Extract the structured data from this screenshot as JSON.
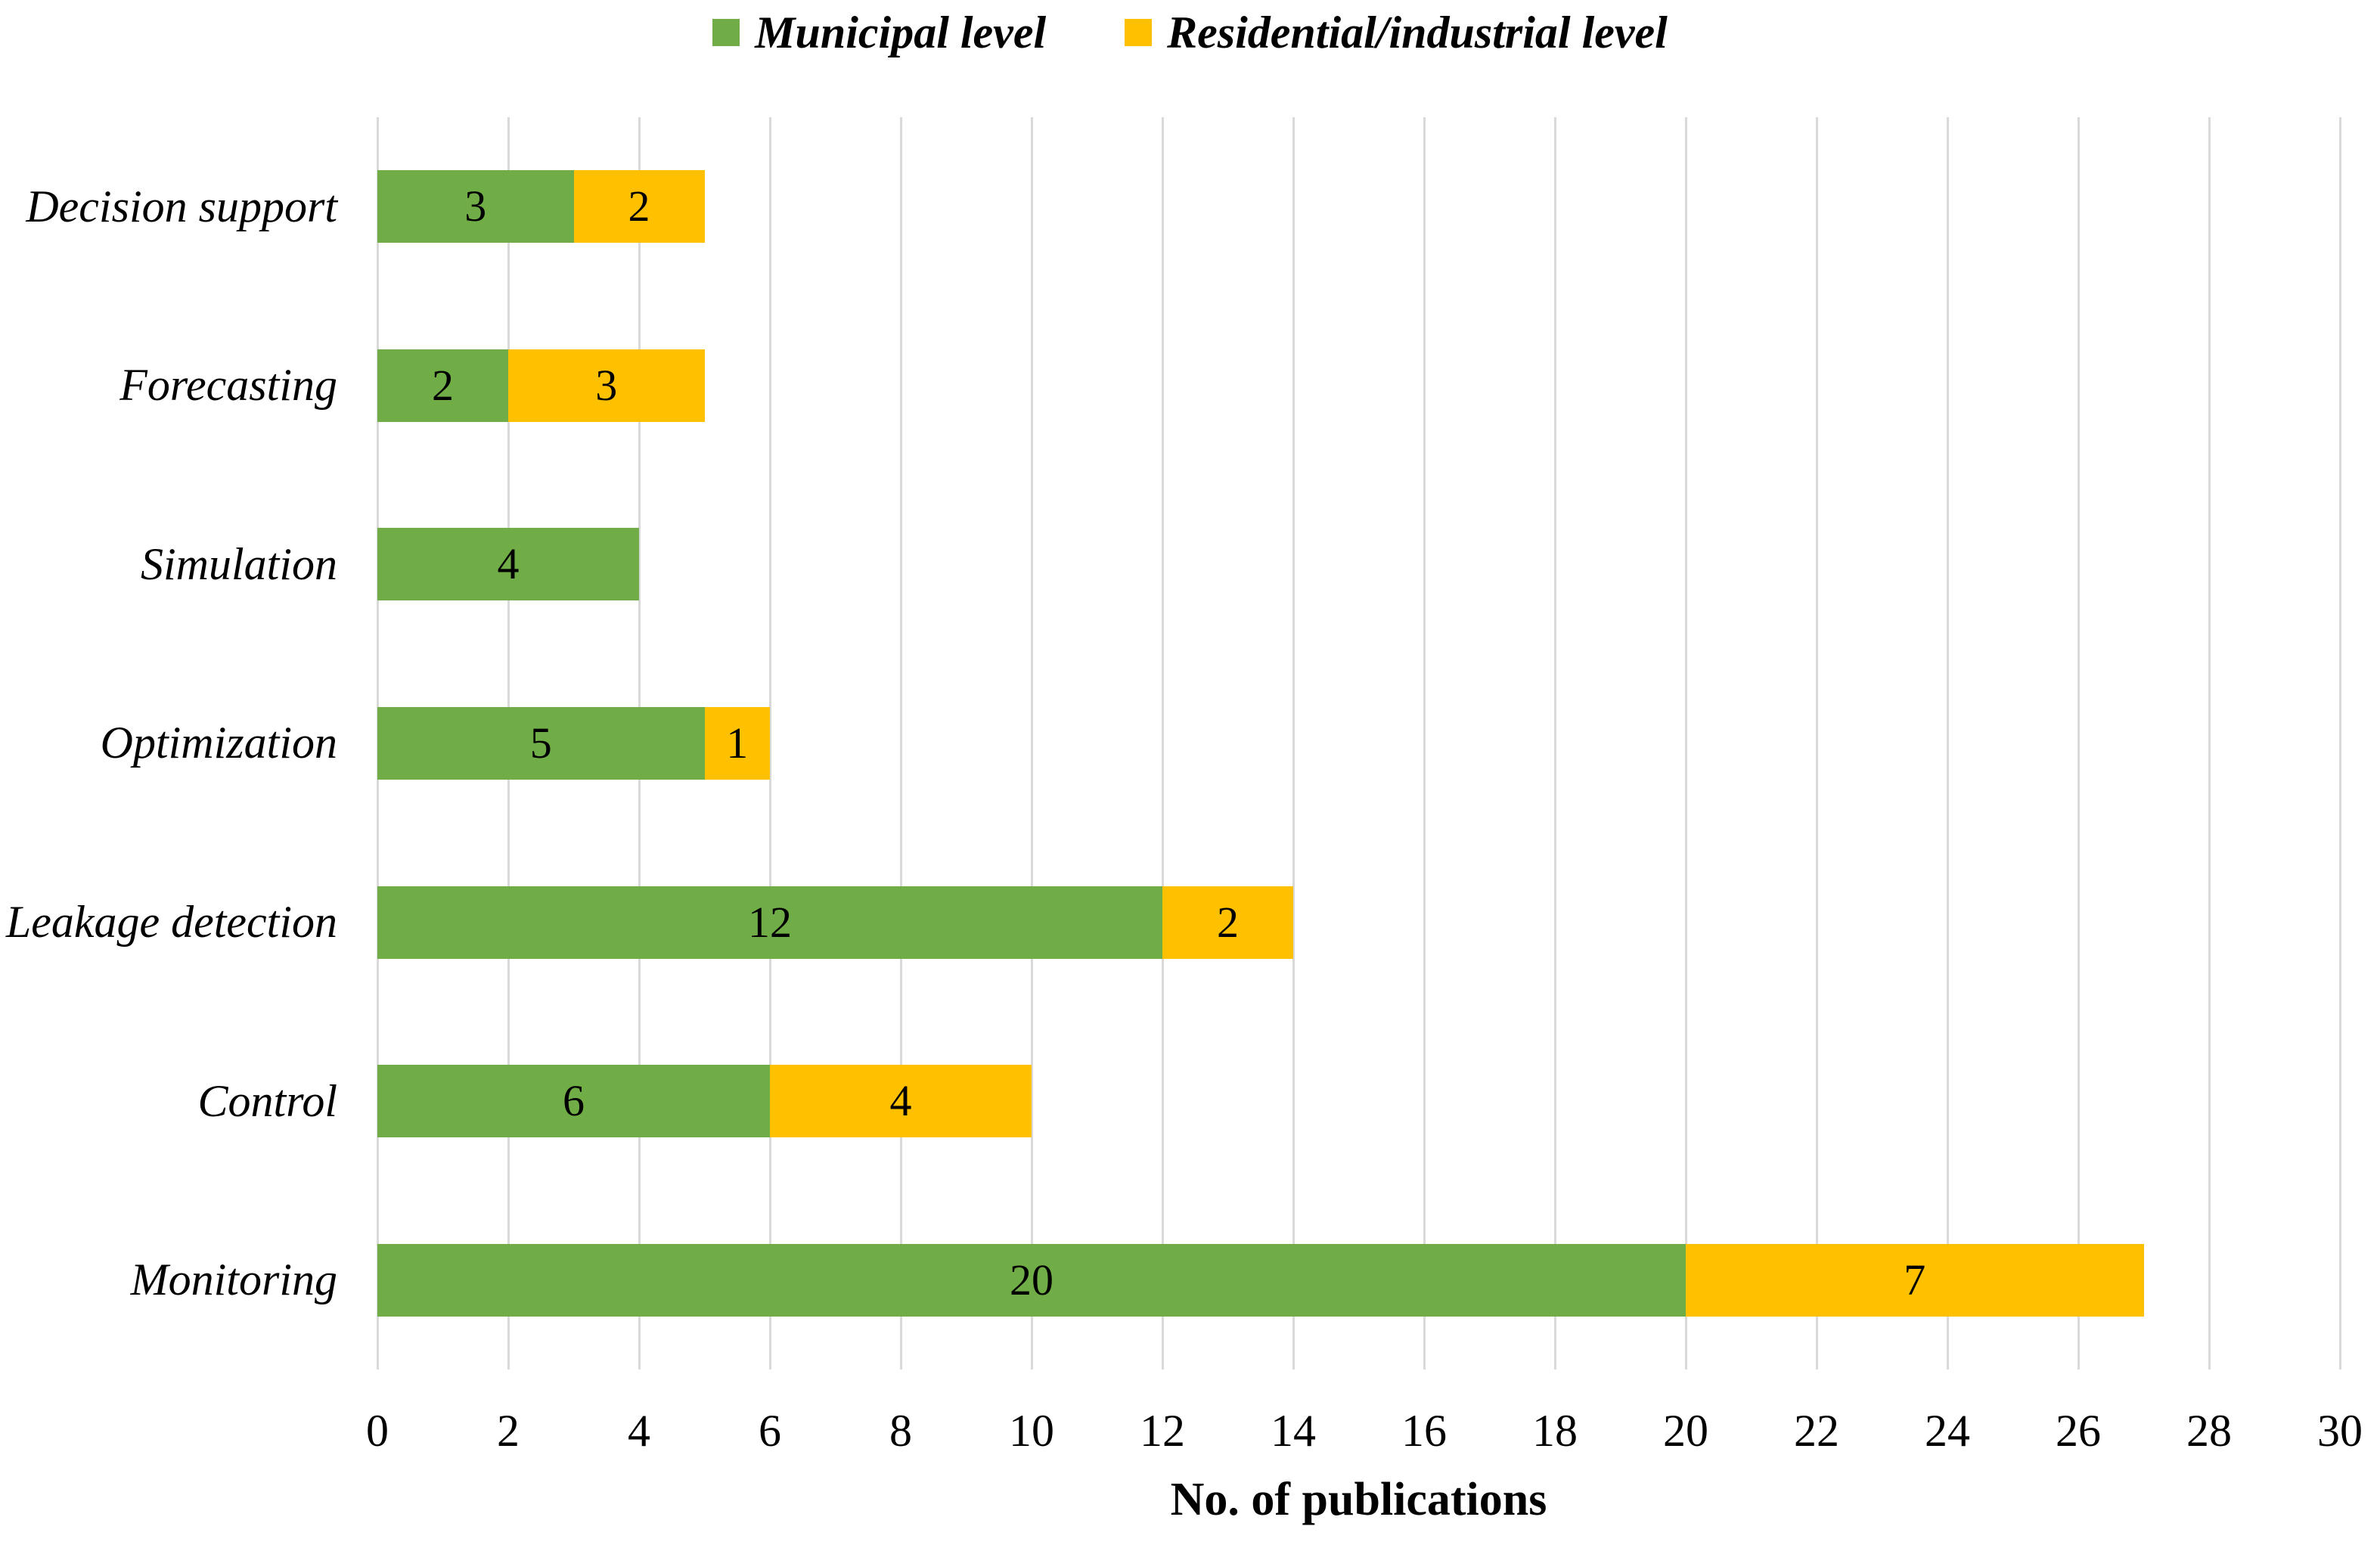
{
  "chart_data": {
    "type": "bar",
    "orientation": "horizontal",
    "stacked": true,
    "categories": [
      "Decision support",
      "Forecasting",
      "Simulation",
      "Optimization",
      "Leakage detection",
      "Control",
      "Monitoring"
    ],
    "series": [
      {
        "name": "Municipal level",
        "color": "#70AD47",
        "values": [
          3,
          2,
          4,
          5,
          12,
          6,
          20
        ]
      },
      {
        "name": "Residential/industrial level",
        "color": "#FFC000",
        "values": [
          2,
          3,
          0,
          1,
          2,
          4,
          7
        ]
      }
    ],
    "totals": [
      5,
      5,
      4,
      6,
      14,
      10,
      27
    ],
    "xlabel": "No. of publications",
    "xlim": [
      0,
      30
    ],
    "xticks": [
      0,
      2,
      4,
      6,
      8,
      10,
      12,
      14,
      16,
      18,
      20,
      22,
      24,
      26,
      28,
      30
    ],
    "grid": "vertical",
    "gridline_color": "#D9D9D9",
    "bar_label_color": "#000000",
    "legend_position": "top"
  }
}
